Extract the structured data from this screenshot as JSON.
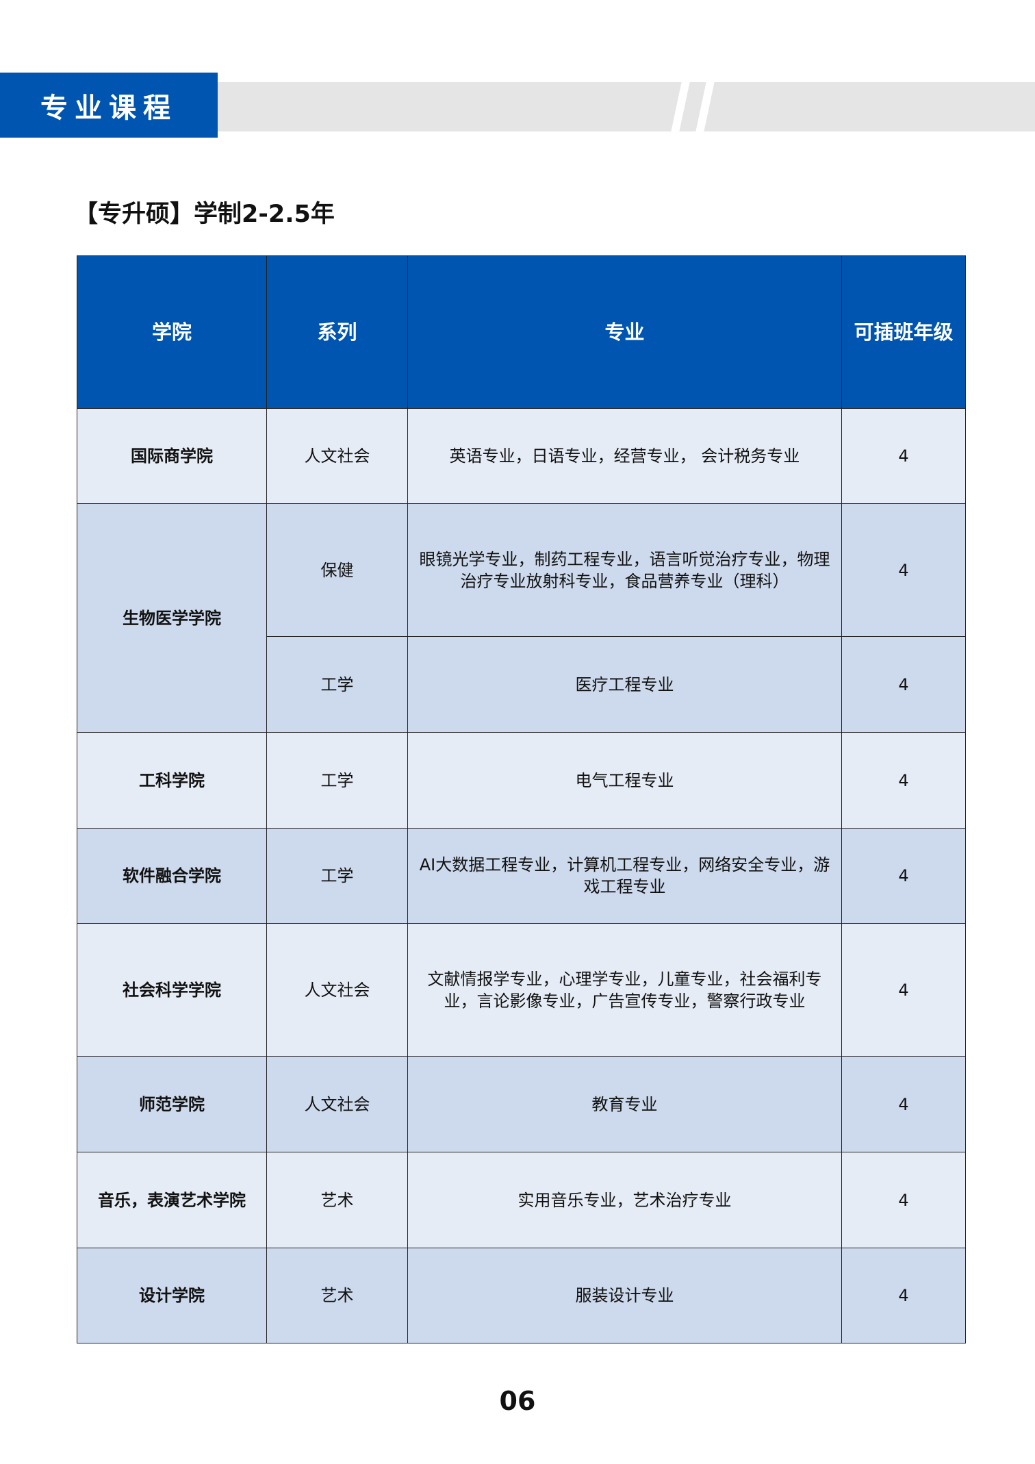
{
  "header": {
    "section_title": "专业课程"
  },
  "subtitle": "【专升硕】学制2-2.5年",
  "colors": {
    "primary_blue": "#0055b1",
    "row_light": "#e6ecf6",
    "row_dark": "#cdd9ec",
    "band_grey": "#e5e5e5"
  },
  "table": {
    "columns": [
      "学院",
      "系列",
      "专业",
      "可插班年级"
    ],
    "rows": [
      {
        "college": "国际商学院",
        "series": "人文社会",
        "majors": "英语专业，日语专业，经营专业， 会计税务专业",
        "grade": "4"
      },
      {
        "college": "生物医学学院",
        "series": "保健",
        "majors": "眼镜光学专业，制药工程专业，语言听觉治疗专业，物理治疗专业放射科专业，食品营养专业（理科）",
        "grade": "4"
      },
      {
        "college": "",
        "series": "工学",
        "majors": "医疗工程专业",
        "grade": "4"
      },
      {
        "college": "工科学院",
        "series": "工学",
        "majors": "电气工程专业",
        "grade": "4"
      },
      {
        "college": "软件融合学院",
        "series": "工学",
        "majors": "AI大数据工程专业，计算机工程专业，网络安全专业，游戏工程专业",
        "grade": "4"
      },
      {
        "college": "社会科学学院",
        "series": "人文社会",
        "majors": "文献情报学专业，心理学专业，儿童专业，社会福利专业，言论影像专业，广告宣传专业，警察行政专业",
        "grade": "4"
      },
      {
        "college": "师范学院",
        "series": "人文社会",
        "majors": "教育专业",
        "grade": "4"
      },
      {
        "college": "音乐，表演艺术学院",
        "series": "艺术",
        "majors": "实用音乐专业，艺术治疗专业",
        "grade": "4"
      },
      {
        "college": "设计学院",
        "series": "艺术",
        "majors": "服装设计专业",
        "grade": "4"
      }
    ]
  },
  "page_number": "06"
}
